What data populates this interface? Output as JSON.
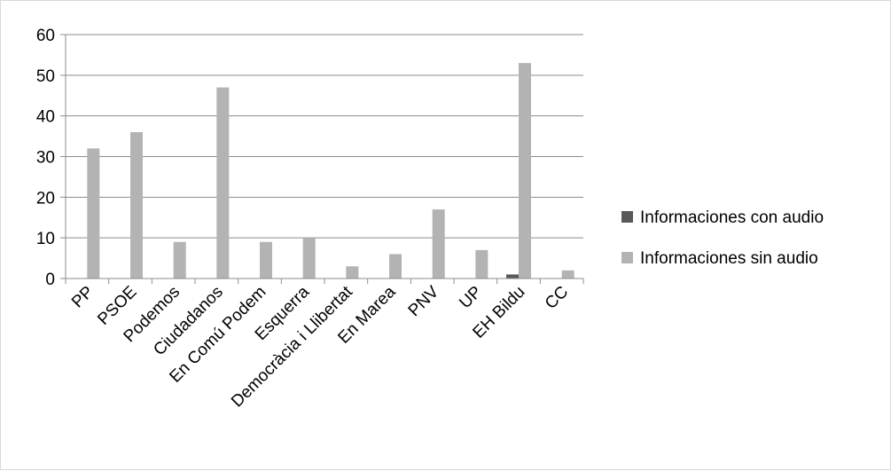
{
  "chart_data": {
    "type": "bar",
    "title": "",
    "xlabel": "",
    "ylabel": "",
    "ylim": [
      0,
      60
    ],
    "yticks": [
      0,
      10,
      20,
      30,
      40,
      50,
      60
    ],
    "grid": true,
    "legend_position": "right",
    "categories": [
      "PP",
      "PSOE",
      "Podemos",
      "Ciudadanos",
      "En Comú Podem",
      "Esquerra",
      "Democràcia i Llibertat",
      "En Marea",
      "PNV",
      "UP",
      "EH Bildu",
      "CC"
    ],
    "series": [
      {
        "name": "Informaciones con audio",
        "color": "#595959",
        "values": [
          0,
          0,
          0,
          0,
          0,
          0,
          0,
          0,
          0,
          0,
          1,
          0
        ]
      },
      {
        "name": "Informaciones sin audio",
        "color": "#b3b3b3",
        "values": [
          32,
          36,
          9,
          47,
          9,
          10,
          3,
          6,
          17,
          7,
          53,
          2
        ]
      }
    ]
  }
}
